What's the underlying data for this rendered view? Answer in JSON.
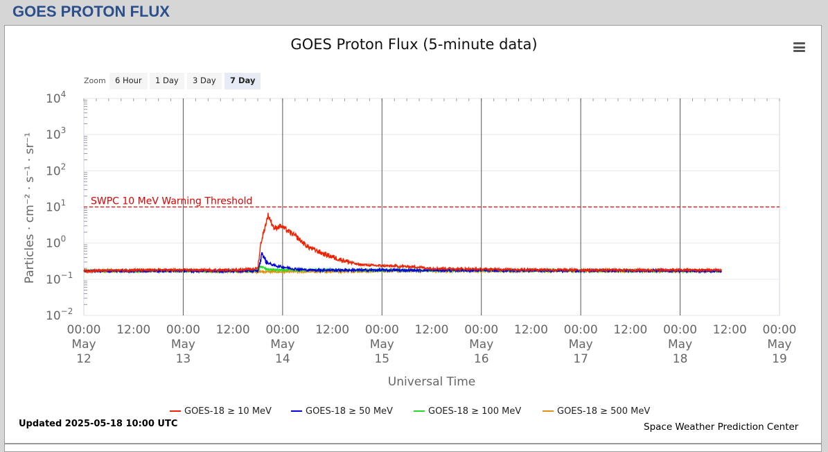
{
  "page": {
    "title": "GOES PROTON FLUX"
  },
  "chart_meta": {
    "zoom_label": "Zoom",
    "zoom_buttons": [
      "6 Hour",
      "1 Day",
      "3 Day",
      "7 Day"
    ],
    "active_zoom": "7 Day",
    "updated": "Updated 2025-05-18 10:00 UTC",
    "credit": "Space Weather Prediction Center"
  },
  "chart_data": {
    "type": "line",
    "title": "GOES Proton Flux (5-minute data)",
    "xlabel": "Universal Time",
    "ylabel": "Particles · cm⁻² · s⁻¹ · sr⁻¹",
    "y_scale": "log",
    "ylim": [
      0.01,
      10000
    ],
    "y_ticks": [
      {
        "base": "10",
        "exp": "4",
        "value": 10000
      },
      {
        "base": "10",
        "exp": "3",
        "value": 1000
      },
      {
        "base": "10",
        "exp": "2",
        "value": 100
      },
      {
        "base": "10",
        "exp": "1",
        "value": 10
      },
      {
        "base": "10",
        "exp": "0",
        "value": 1
      },
      {
        "base": "10",
        "exp": "−1",
        "value": 0.1
      },
      {
        "base": "10",
        "exp": "−2",
        "value": 0.01
      }
    ],
    "xlim": [
      "2025-05-12 00:00",
      "2025-05-19 00:00"
    ],
    "x_ticks": [
      {
        "time": "00:00",
        "date1": "May",
        "date2": "12"
      },
      {
        "time": "12:00"
      },
      {
        "time": "00:00",
        "date1": "May",
        "date2": "13"
      },
      {
        "time": "12:00"
      },
      {
        "time": "00:00",
        "date1": "May",
        "date2": "14"
      },
      {
        "time": "12:00"
      },
      {
        "time": "00:00",
        "date1": "May",
        "date2": "15"
      },
      {
        "time": "12:00"
      },
      {
        "time": "00:00",
        "date1": "May",
        "date2": "16"
      },
      {
        "time": "12:00"
      },
      {
        "time": "00:00",
        "date1": "May",
        "date2": "17"
      },
      {
        "time": "12:00"
      },
      {
        "time": "00:00",
        "date1": "May",
        "date2": "18"
      },
      {
        "time": "12:00"
      },
      {
        "time": "00:00",
        "date1": "May",
        "date2": "19"
      }
    ],
    "grid": true,
    "threshold": {
      "label": "SWPC 10 MeV Warning Threshold",
      "value": 10,
      "color": "#dd0000"
    },
    "legend_position": "bottom",
    "series": [
      {
        "name": "GOES-18 ≥ 10 MeV",
        "color": "#ee2200",
        "points": [
          [
            "2025-05-12 00:00",
            0.17
          ],
          [
            "2025-05-12 12:00",
            0.18
          ],
          [
            "2025-05-13 00:00",
            0.18
          ],
          [
            "2025-05-13 12:00",
            0.18
          ],
          [
            "2025-05-13 16:00",
            0.19
          ],
          [
            "2025-05-13 18:00",
            0.2
          ],
          [
            "2025-05-13 18:45",
            1.0
          ],
          [
            "2025-05-13 20:30",
            6.0
          ],
          [
            "2025-05-13 22:00",
            2.5
          ],
          [
            "2025-05-13 23:30",
            3.0
          ],
          [
            "2025-05-14 03:00",
            1.6
          ],
          [
            "2025-05-14 06:00",
            0.8
          ],
          [
            "2025-05-14 10:00",
            0.5
          ],
          [
            "2025-05-14 14:00",
            0.35
          ],
          [
            "2025-05-14 18:00",
            0.26
          ],
          [
            "2025-05-14 22:00",
            0.24
          ],
          [
            "2025-05-15 03:00",
            0.23
          ],
          [
            "2025-05-15 08:00",
            0.22
          ],
          [
            "2025-05-15 12:00",
            0.2
          ],
          [
            "2025-05-16 00:00",
            0.19
          ],
          [
            "2025-05-17 00:00",
            0.18
          ],
          [
            "2025-05-18 00:00",
            0.18
          ],
          [
            "2025-05-18 10:00",
            0.18
          ]
        ]
      },
      {
        "name": "GOES-18 ≥ 50 MeV",
        "color": "#0000dd",
        "points": [
          [
            "2025-05-12 00:00",
            0.17
          ],
          [
            "2025-05-13 18:00",
            0.17
          ],
          [
            "2025-05-13 18:45",
            0.35
          ],
          [
            "2025-05-13 19:00",
            0.55
          ],
          [
            "2025-05-13 20:00",
            0.3
          ],
          [
            "2025-05-13 22:00",
            0.24
          ],
          [
            "2025-05-14 02:00",
            0.2
          ],
          [
            "2025-05-14 06:00",
            0.18
          ],
          [
            "2025-05-18 10:00",
            0.17
          ]
        ]
      },
      {
        "name": "GOES-18 ≥ 100 MeV",
        "color": "#22dd22",
        "points": [
          [
            "2025-05-12 00:00",
            0.17
          ],
          [
            "2025-05-13 18:00",
            0.17
          ],
          [
            "2025-05-13 18:45",
            0.23
          ],
          [
            "2025-05-13 20:00",
            0.19
          ],
          [
            "2025-05-13 23:00",
            0.18
          ],
          [
            "2025-05-18 10:00",
            0.17
          ]
        ]
      },
      {
        "name": "GOES-18 ≥ 500 MeV",
        "color": "#e09010",
        "points": [
          [
            "2025-05-12 00:00",
            0.17
          ],
          [
            "2025-05-13 00:00",
            0.17
          ],
          [
            "2025-05-14 00:00",
            0.16
          ],
          [
            "2025-05-15 00:00",
            0.17
          ],
          [
            "2025-05-16 00:00",
            0.17
          ],
          [
            "2025-05-17 00:00",
            0.17
          ],
          [
            "2025-05-18 10:00",
            0.17
          ]
        ]
      }
    ]
  }
}
